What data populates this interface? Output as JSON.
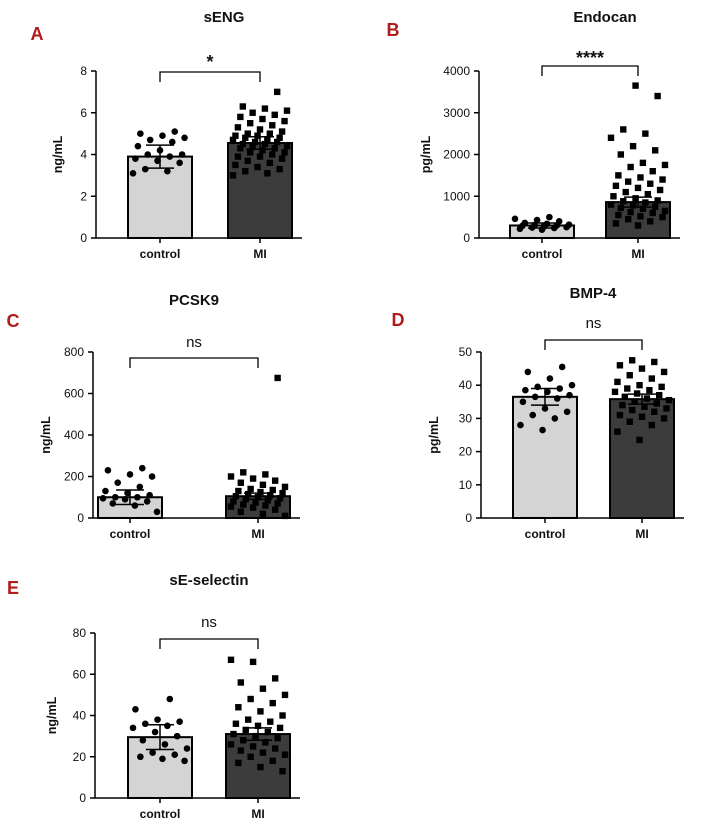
{
  "figure": {
    "groups": [
      "control",
      "MI"
    ]
  },
  "chart_data": [
    {
      "panel": "A",
      "type": "bar",
      "title": "sENG",
      "ylabel": "ng/mL",
      "ylim": [
        0,
        8
      ],
      "yticks": [
        0,
        2,
        4,
        6,
        8
      ],
      "categories": [
        "control",
        "MI"
      ],
      "means": [
        3.9,
        4.55
      ],
      "errors": [
        0.55,
        0.3
      ],
      "significance": "*",
      "points": [
        [
          3.1,
          3.2,
          3.3,
          3.6,
          3.7,
          3.8,
          3.9,
          4.0,
          4.0,
          4.2,
          4.4,
          4.6,
          4.7,
          4.8,
          4.9,
          5.0,
          5.1
        ],
        [
          3.0,
          3.1,
          3.2,
          3.3,
          3.4,
          3.5,
          3.6,
          3.7,
          3.8,
          3.9,
          3.9,
          4.0,
          4.1,
          4.1,
          4.2,
          4.3,
          4.3,
          4.4,
          4.4,
          4.5,
          4.5,
          4.6,
          4.6,
          4.7,
          4.7,
          4.8,
          4.8,
          4.9,
          4.9,
          5.0,
          5.0,
          5.1,
          5.2,
          5.3,
          5.4,
          5.5,
          5.6,
          5.7,
          5.8,
          5.9,
          6.0,
          6.1,
          6.2,
          6.3,
          7.0
        ]
      ]
    },
    {
      "panel": "B",
      "type": "bar",
      "title": "Endocan",
      "ylabel": "pg/mL",
      "ylim": [
        0,
        4000
      ],
      "yticks": [
        0,
        1000,
        2000,
        3000,
        4000
      ],
      "categories": [
        "control",
        "MI"
      ],
      "means": [
        300,
        860
      ],
      "errors": [
        60,
        120
      ],
      "significance": "****",
      "points": [
        [
          200,
          220,
          240,
          250,
          260,
          280,
          290,
          300,
          310,
          320,
          340,
          360,
          400,
          430,
          460,
          500
        ],
        [
          300,
          350,
          400,
          450,
          500,
          520,
          550,
          600,
          620,
          650,
          700,
          720,
          750,
          780,
          800,
          850,
          880,
          900,
          950,
          1000,
          1050,
          1100,
          1150,
          1200,
          1250,
          1300,
          1350,
          1400,
          1450,
          1500,
          1600,
          1700,
          1750,
          1800,
          2000,
          2100,
          2200,
          2400,
          2500,
          2600,
          3400,
          3650
        ]
      ]
    },
    {
      "panel": "C",
      "type": "bar",
      "title": "PCSK9",
      "ylabel": "ng/mL",
      "ylim": [
        0,
        800
      ],
      "yticks": [
        0,
        200,
        400,
        600,
        800
      ],
      "categories": [
        "control",
        "MI"
      ],
      "means": [
        100,
        105
      ],
      "errors": [
        35,
        15
      ],
      "significance": "ns",
      "points": [
        [
          30,
          60,
          70,
          80,
          90,
          95,
          100,
          100,
          110,
          120,
          130,
          150,
          170,
          200,
          210,
          230,
          240
        ],
        [
          10,
          20,
          30,
          40,
          50,
          55,
          60,
          65,
          70,
          75,
          80,
          85,
          90,
          95,
          100,
          105,
          110,
          115,
          120,
          125,
          130,
          135,
          140,
          150,
          160,
          170,
          180,
          190,
          200,
          210,
          220,
          675
        ]
      ]
    },
    {
      "panel": "D",
      "type": "bar",
      "title": "BMP-4",
      "ylabel": "pg/mL",
      "ylim": [
        0,
        50
      ],
      "yticks": [
        0,
        10,
        20,
        30,
        40,
        50
      ],
      "categories": [
        "control",
        "MI"
      ],
      "means": [
        36.5,
        35.8
      ],
      "errors": [
        2.5,
        1.5
      ],
      "significance": "ns",
      "points": [
        [
          26.5,
          28,
          30,
          31,
          32,
          33,
          35,
          36,
          36.5,
          37,
          38,
          38.5,
          39,
          39.5,
          40,
          42,
          44,
          45.5
        ],
        [
          23.5,
          26,
          28,
          29,
          30,
          30.5,
          31,
          32,
          32.5,
          33,
          33.5,
          34,
          34.5,
          35,
          35.5,
          36,
          36.5,
          37,
          37.5,
          38,
          38.5,
          39,
          39.5,
          40,
          41,
          42,
          43,
          44,
          45,
          46,
          47,
          47.5
        ]
      ]
    },
    {
      "panel": "E",
      "type": "bar",
      "title": "sE-selectin",
      "ylabel": "ng/mL",
      "ylim": [
        0,
        80
      ],
      "yticks": [
        0,
        20,
        40,
        60,
        80
      ],
      "categories": [
        "control",
        "MI"
      ],
      "means": [
        29.5,
        31
      ],
      "errors": [
        6,
        3
      ],
      "significance": "ns",
      "points": [
        [
          18,
          19,
          20,
          21,
          22,
          24,
          26,
          28,
          30,
          32,
          34,
          35,
          36,
          37,
          38,
          43,
          48
        ],
        [
          13,
          15,
          17,
          18,
          20,
          21,
          22,
          23,
          24,
          25,
          26,
          27,
          28,
          29,
          30,
          31,
          32,
          33,
          34,
          35,
          36,
          37,
          38,
          40,
          42,
          44,
          46,
          48,
          50,
          53,
          56,
          58,
          66,
          67
        ]
      ]
    }
  ]
}
